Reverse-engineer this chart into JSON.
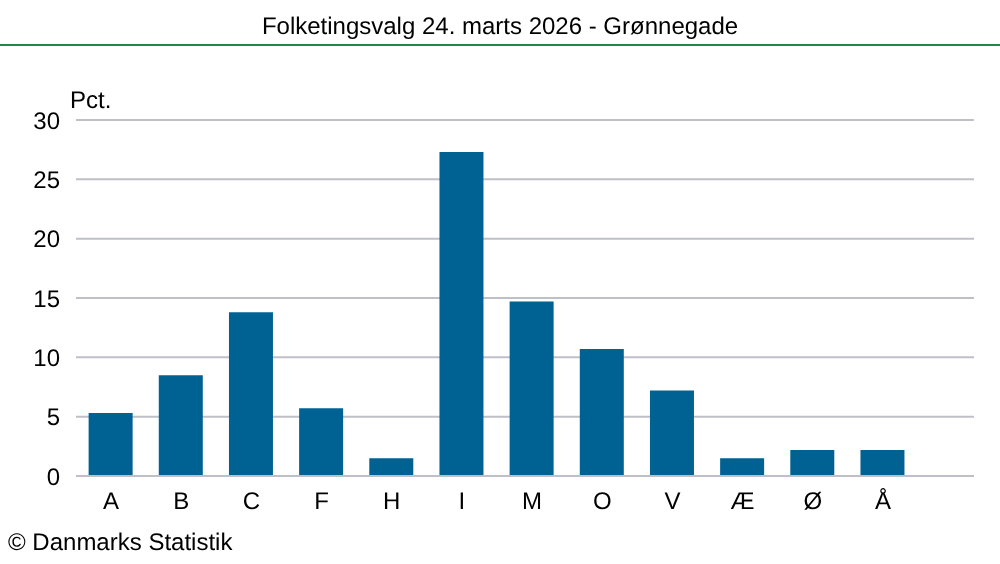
{
  "chart_data": {
    "type": "bar",
    "title": "Folketingsvalg 24. marts 2026 - Grønnegade",
    "ylabel": "Pct.",
    "annotations": [
      "© Danmarks Statistik"
    ],
    "categories": [
      "A",
      "B",
      "C",
      "F",
      "H",
      "I",
      "M",
      "O",
      "V",
      "Æ",
      "Ø",
      "Å"
    ],
    "values": [
      5.3,
      8.5,
      13.8,
      5.7,
      1.5,
      27.3,
      14.7,
      10.7,
      7.2,
      1.5,
      2.2,
      2.2
    ],
    "color": "#006193",
    "ylim": [
      0,
      30
    ],
    "yticks": [
      0,
      5,
      10,
      15,
      20,
      25,
      30
    ],
    "grid": "y"
  }
}
